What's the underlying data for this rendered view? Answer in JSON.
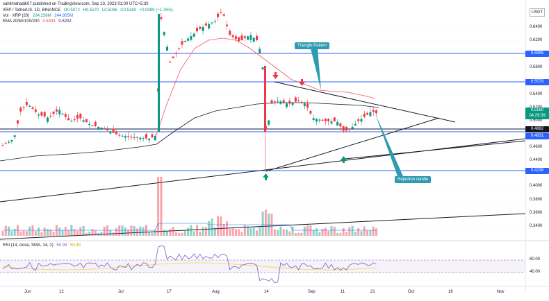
{
  "header": {
    "author_line": "sahilmahadik07 published on TradingView.com, Sep 23, 2023 01:00 UTC+5:30",
    "symbol_line": {
      "symbol": "XRP / TetherUS, 1D, BINANCE",
      "open": "O0.5072",
      "high": "H0.5170",
      "low": "L0.5036",
      "close": "C0.5160",
      "change": "+0.0089 (+1.76%)"
    },
    "volume_line": {
      "label": "Vol · XRP (20)",
      "v1": "204.238M",
      "v2": "244.805M"
    },
    "ema_line": {
      "label": "EMA 20/50/100/200",
      "v1": "0.5333",
      "v2": "0.5202"
    },
    "rsi_line": {
      "label": "RSI (14, close, SMA, 14, 2)",
      "v1": "50.94",
      "v2": "50.48"
    }
  },
  "currency": "USDT",
  "price_axis": {
    "ticks": [
      "0.6400",
      "0.6200",
      "0.5800",
      "0.5400",
      "0.5200",
      "0.5000",
      "0.4600",
      "0.4400",
      "0.4000",
      "0.3800",
      "0.3600",
      "0.3400"
    ]
  },
  "price_labels": [
    {
      "value": "0.5995",
      "color": "#2962ff"
    },
    {
      "value": "0.5579",
      "color": "#2962ff"
    },
    {
      "value": "0.5160",
      "color": "#089981"
    },
    {
      "value": "04:29:39",
      "color": "#089981"
    },
    {
      "value": "0.4862",
      "color": "#131722"
    },
    {
      "value": "0.4831",
      "color": "#2962ff"
    },
    {
      "value": "0.4238",
      "color": "#2962ff"
    }
  ],
  "rsi_axis": {
    "ticks": [
      "60.00",
      "40.00"
    ]
  },
  "time_axis": {
    "ticks": [
      "Jun",
      "12",
      "Jul",
      "17",
      "Aug",
      "14",
      "Sep",
      "11",
      "21",
      "Oct",
      "16",
      "Nov"
    ]
  },
  "annotations": {
    "triangle": "Triangle Pattern",
    "rejection": "Rejection candle"
  },
  "colors": {
    "up": "#089981",
    "down": "#f23645",
    "level": "#2962ff",
    "annotation": "#2e9bb0",
    "ema_fast": "#f7525f",
    "ema_slow": "#131722",
    "rsi": "#7e57c2",
    "rsi_ma": "#f7d93a"
  },
  "icons": {
    "arrow_down": "arrow-down-icon",
    "arrow_up": "arrow-up-icon"
  }
}
